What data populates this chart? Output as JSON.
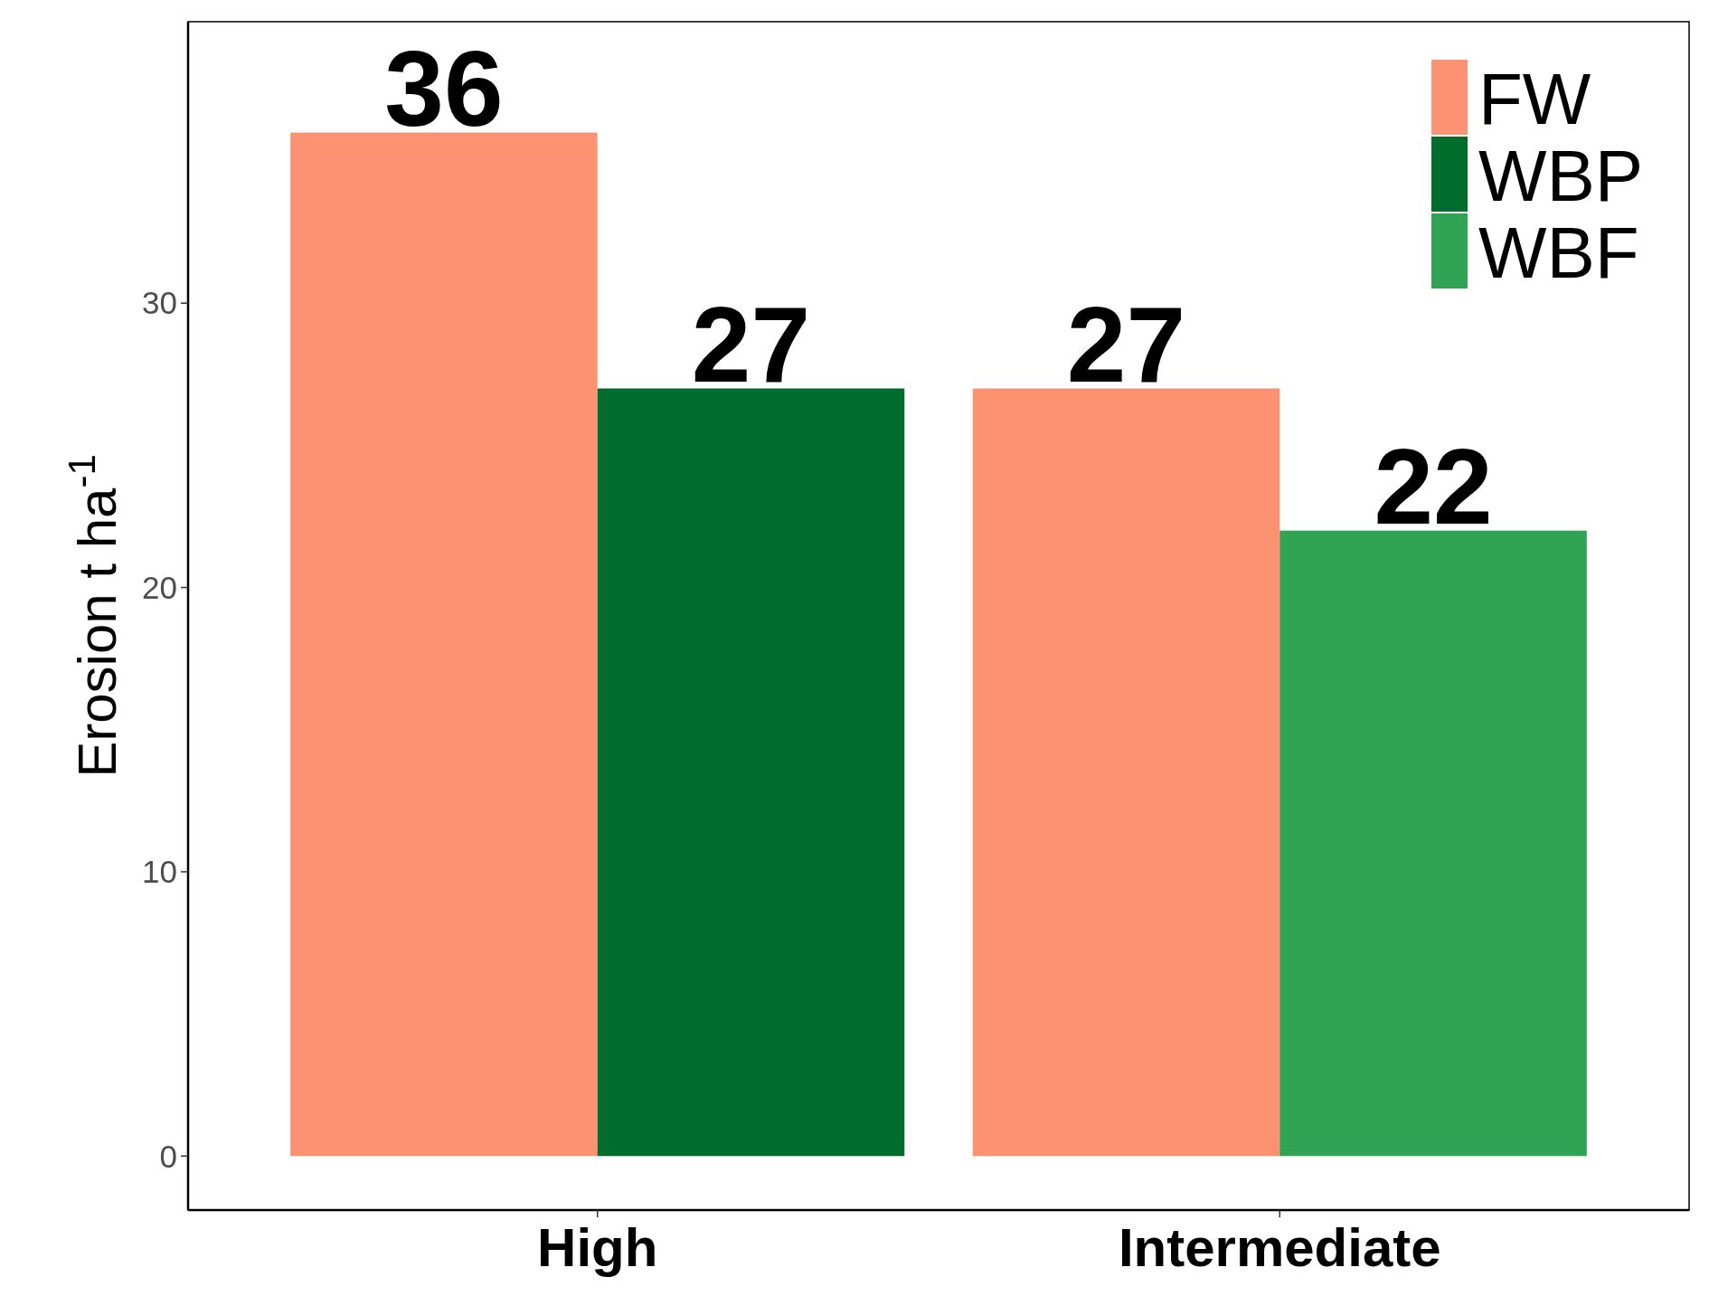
{
  "chart_data": {
    "type": "bar",
    "ylabel": "Erosion t  ha$^{-1}$",
    "categories": [
      "High",
      "Intermediate"
    ],
    "series": [
      {
        "name": "FW",
        "color": "#fc9272",
        "values": [
          36,
          27
        ]
      },
      {
        "name": "WBP",
        "color": "#006d2c",
        "values": [
          27,
          null
        ]
      },
      {
        "name": "WBF",
        "color": "#31a354",
        "values": [
          null,
          22
        ]
      }
    ],
    "ylim": [
      -1.9,
      39.9
    ],
    "yticks": [
      0,
      10,
      20,
      30
    ],
    "data_labels": true,
    "legend": "top right",
    "grid": false
  }
}
